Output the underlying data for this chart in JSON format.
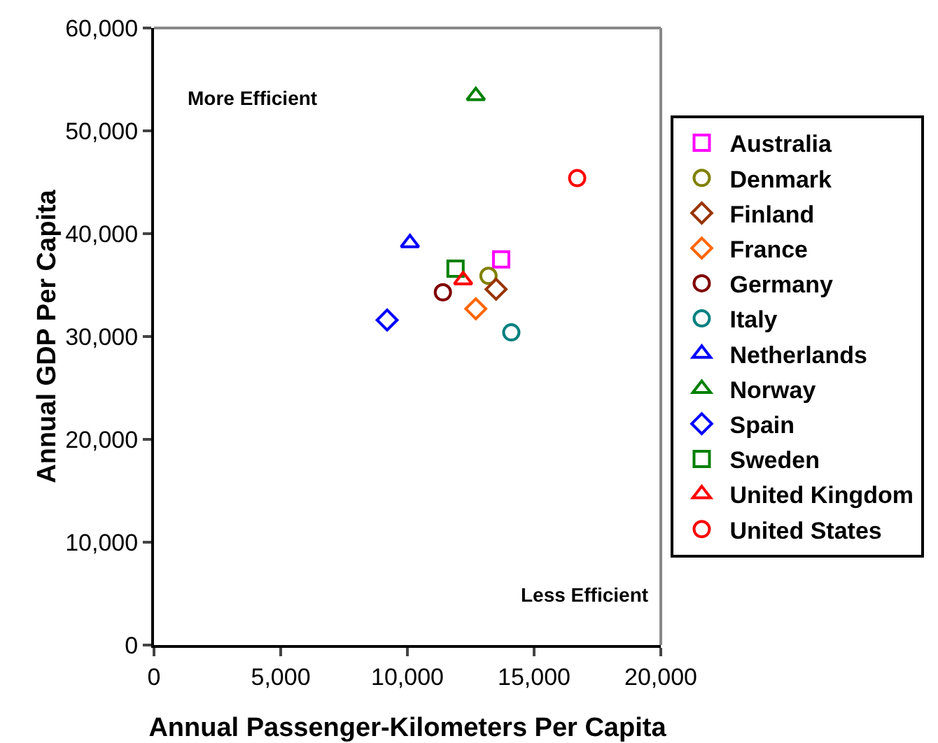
{
  "chart_data": {
    "type": "scatter",
    "xlabel": "Annual Passenger-Kilometers Per Capita",
    "ylabel": "Annual GDP Per Capita",
    "annotations": [
      "More Efficient",
      "Less Efficient"
    ],
    "xlim": [
      0,
      20000
    ],
    "xticks": [
      0,
      {
        "value": 5000,
        "label": "5,000"
      },
      {
        "value": 10000,
        "label": "10,000"
      },
      {
        "value": 15000,
        "label": "15,000"
      },
      {
        "value": 20000,
        "label": "20,000"
      }
    ],
    "ylim": [
      0,
      60000
    ],
    "yticks": [
      0,
      {
        "value": 10000,
        "label": "10,000"
      },
      {
        "value": 20000,
        "label": "20,000"
      },
      {
        "value": 30000,
        "label": "30,000"
      },
      {
        "value": 40000,
        "label": "40,000"
      },
      {
        "value": 50000,
        "label": "50,000"
      },
      {
        "value": 60000,
        "label": "60,000"
      }
    ],
    "grid": false,
    "legend": "right",
    "series": [
      {
        "name": "Australia",
        "color": "#ff00ff",
        "marker": "square",
        "x": [
          13700
        ],
        "values": [
          37500
        ]
      },
      {
        "name": "Denmark",
        "color": "#808000",
        "marker": "circle",
        "x": [
          13200
        ],
        "values": [
          35900
        ]
      },
      {
        "name": "Finland",
        "color": "#993300",
        "marker": "diamond",
        "x": [
          13500
        ],
        "values": [
          34600
        ]
      },
      {
        "name": "France",
        "color": "#ff6600",
        "marker": "diamond",
        "x": [
          12700
        ],
        "values": [
          32700
        ]
      },
      {
        "name": "Germany",
        "color": "#800000",
        "marker": "circle",
        "x": [
          11400
        ],
        "values": [
          34300
        ]
      },
      {
        "name": "Italy",
        "color": "#008080",
        "marker": "circle",
        "x": [
          14100
        ],
        "values": [
          30400
        ]
      },
      {
        "name": "Netherlands",
        "color": "#0000ff",
        "marker": "triangle",
        "x": [
          10100
        ],
        "values": [
          39100
        ]
      },
      {
        "name": "Norway",
        "color": "#008000",
        "marker": "triangle",
        "x": [
          12700
        ],
        "values": [
          53400
        ]
      },
      {
        "name": "Spain",
        "color": "#0000ff",
        "marker": "diamond",
        "x": [
          9200
        ],
        "values": [
          31600
        ]
      },
      {
        "name": "Sweden",
        "color": "#008000",
        "marker": "square",
        "x": [
          11900
        ],
        "values": [
          36600
        ]
      },
      {
        "name": "United Kingdom",
        "color": "#ff0000",
        "marker": "triangle",
        "x": [
          12200
        ],
        "values": [
          35500
        ]
      },
      {
        "name": "United States",
        "color": "#ff0000",
        "marker": "circle",
        "x": [
          16700
        ],
        "values": [
          45400
        ]
      }
    ]
  }
}
